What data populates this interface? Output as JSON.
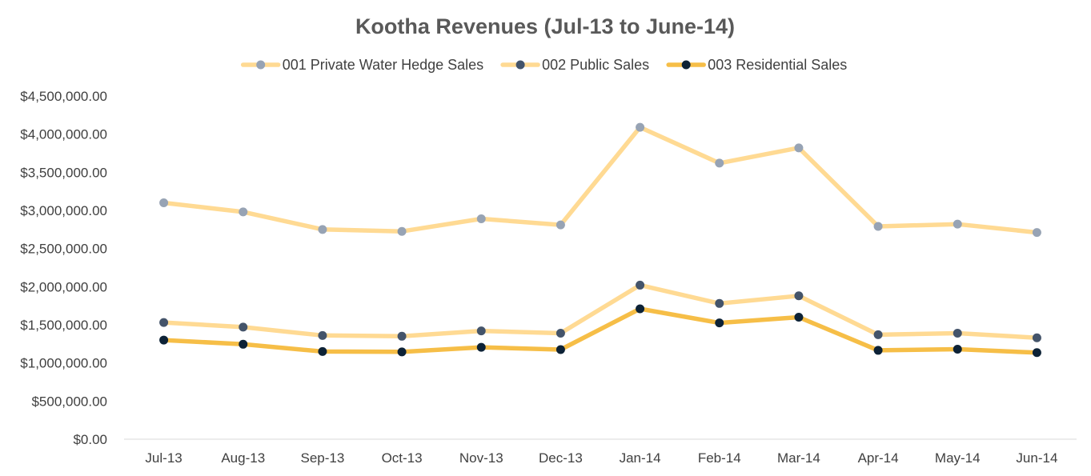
{
  "chart_data": {
    "type": "line",
    "title": "Kootha Revenues (Jul-13 to June-14)",
    "xlabel": "",
    "ylabel": "",
    "categories": [
      "Jul-13",
      "Aug-13",
      "Sep-13",
      "Oct-13",
      "Nov-13",
      "Dec-13",
      "Jan-14",
      "Feb-14",
      "Mar-14",
      "Apr-14",
      "May-14",
      "Jun-14"
    ],
    "ylim": [
      0,
      4500000
    ],
    "yticks": [
      0,
      500000,
      1000000,
      1500000,
      2000000,
      2500000,
      3000000,
      3500000,
      4000000,
      4500000
    ],
    "ytick_labels": [
      "$0.00",
      "$500,000.00",
      "$1,000,000.00",
      "$1,500,000.00",
      "$2,000,000.00",
      "$2,500,000.00",
      "$3,000,000.00",
      "$3,500,000.00",
      "$4,000,000.00",
      "$4,500,000.00"
    ],
    "legend_position": "top-center",
    "grid": false,
    "series": [
      {
        "name": "001 Private Water Hedge Sales",
        "line_color": "#FFDA93",
        "marker_color": "#97A3B4",
        "values": [
          3100000,
          2980000,
          2750000,
          2725000,
          2890000,
          2810000,
          4090000,
          3620000,
          3820000,
          2790000,
          2820000,
          2710000
        ]
      },
      {
        "name": "002 Public Sales",
        "line_color": "#FFDA93",
        "marker_color": "#44546A",
        "values": [
          1530000,
          1470000,
          1360000,
          1350000,
          1420000,
          1390000,
          2020000,
          1780000,
          1880000,
          1370000,
          1390000,
          1330000
        ]
      },
      {
        "name": "003 Residential Sales",
        "line_color": "#F6BE47",
        "marker_color": "#0D2236",
        "values": [
          1300000,
          1245000,
          1150000,
          1145000,
          1205000,
          1175000,
          1710000,
          1525000,
          1600000,
          1165000,
          1180000,
          1135000
        ]
      }
    ]
  }
}
